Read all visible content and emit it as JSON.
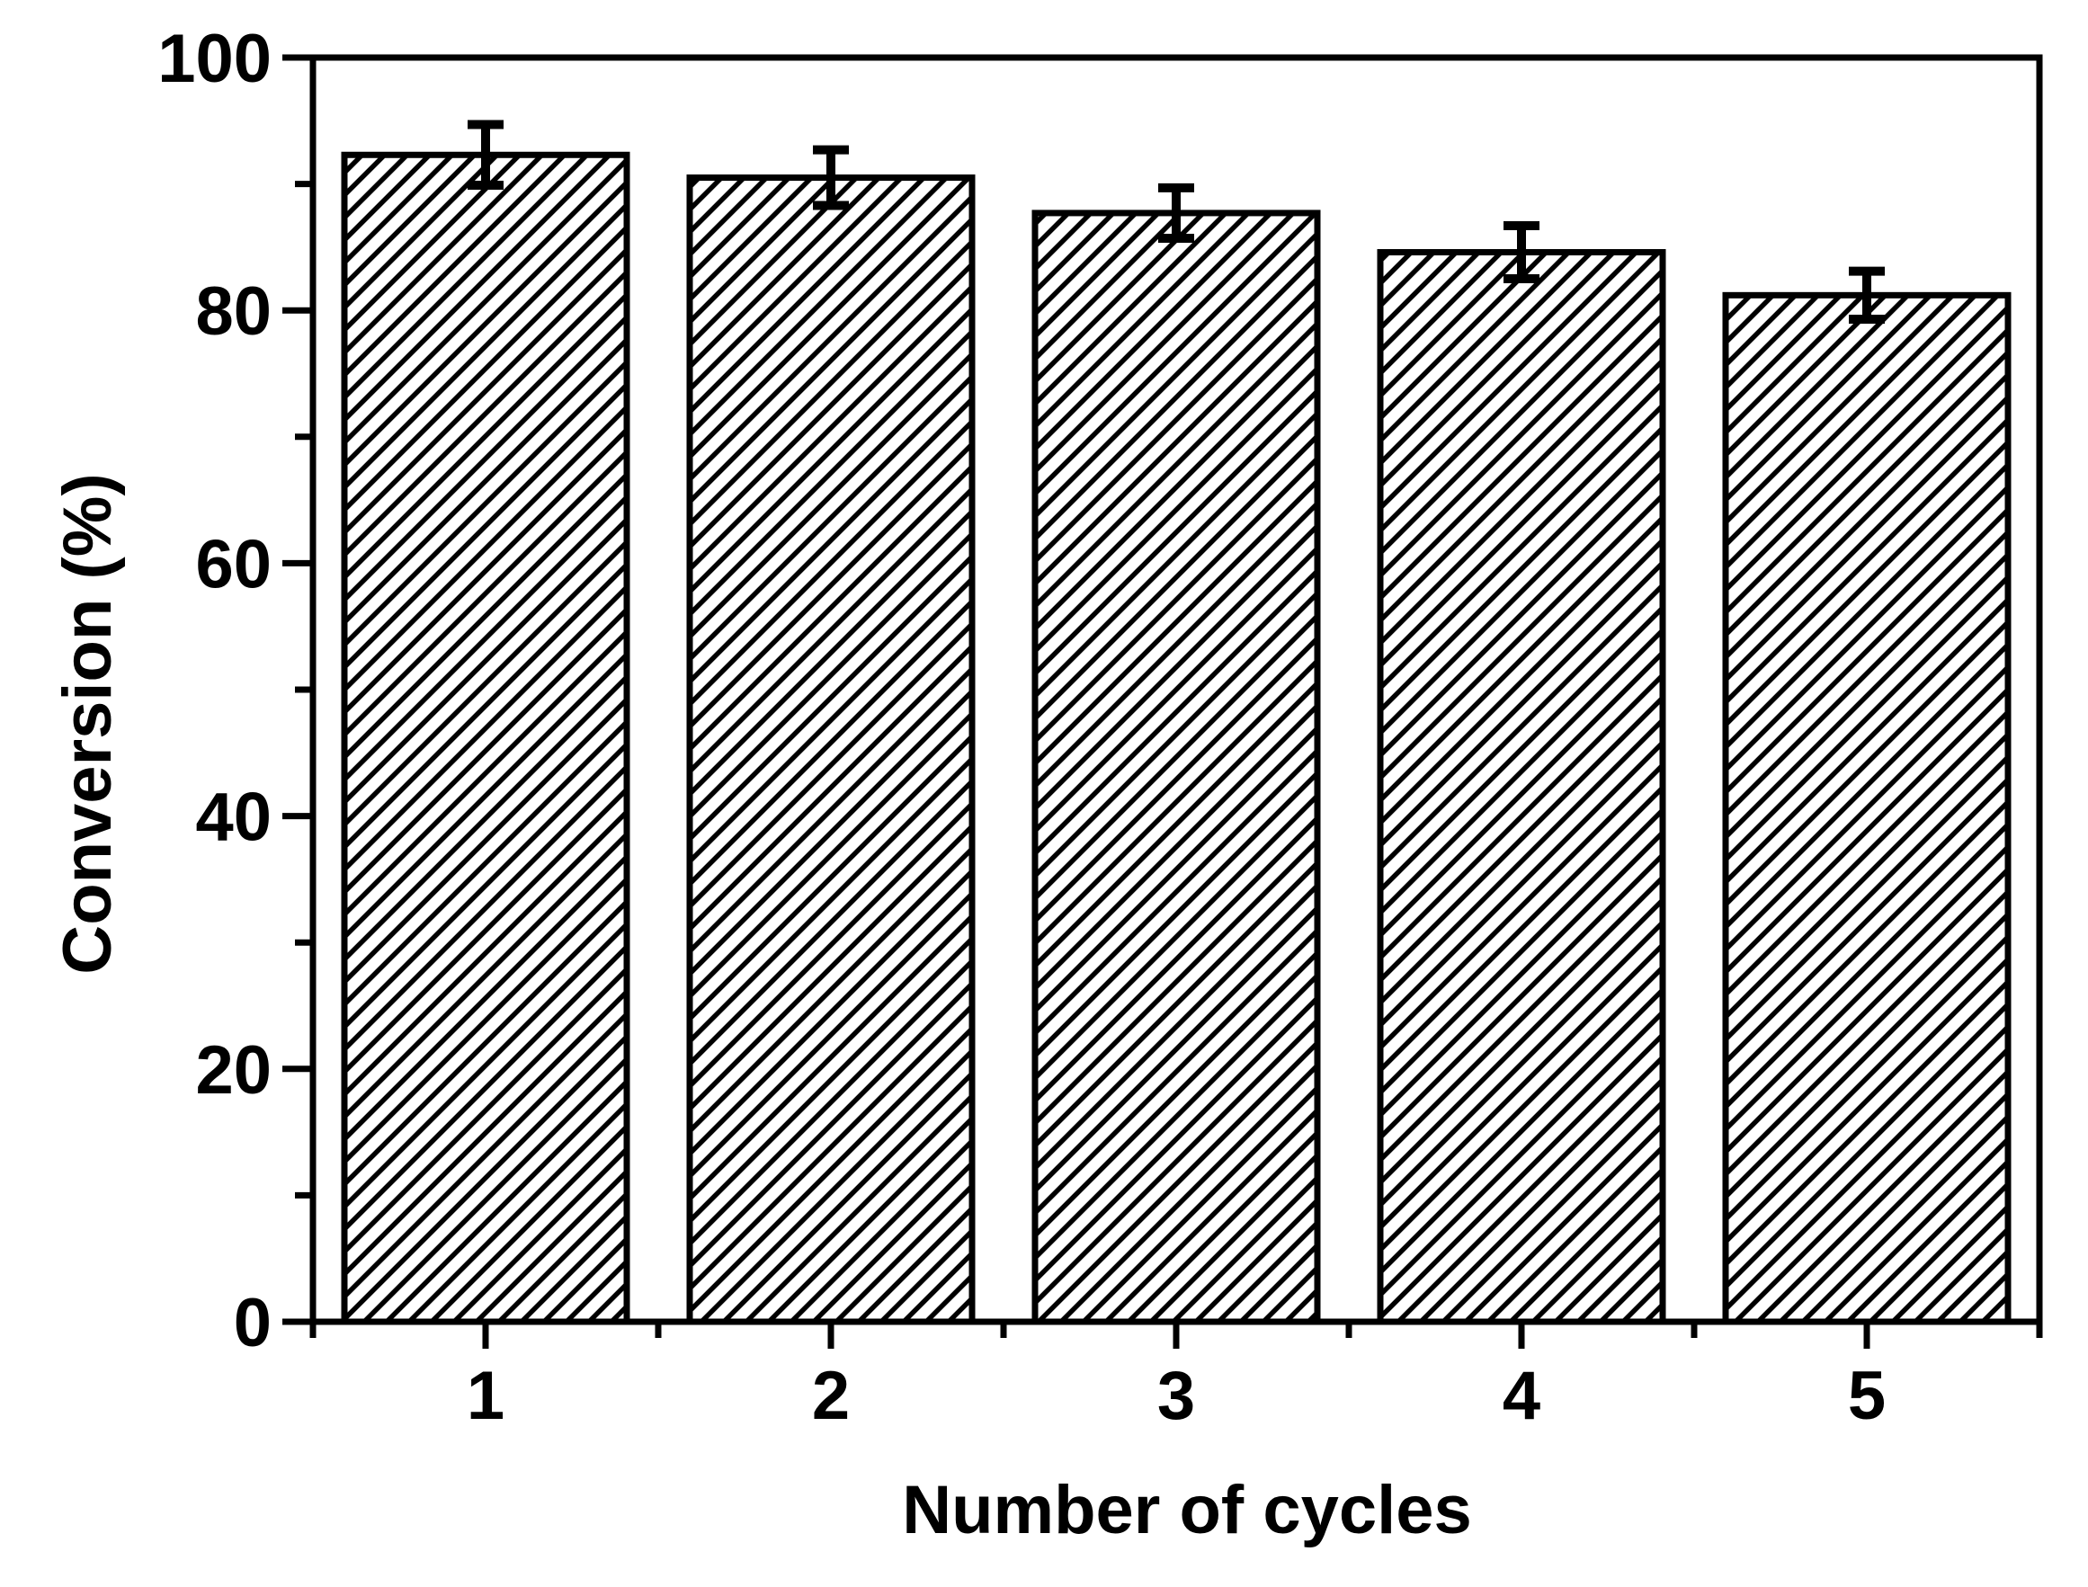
{
  "figure": {
    "background": "#ffffff",
    "ink_color": "#000000"
  },
  "chart_data": {
    "type": "bar",
    "title": "",
    "xlabel": "Number of cycles",
    "ylabel": "Conversion (%)",
    "categories": [
      "1",
      "2",
      "3",
      "4",
      "5"
    ],
    "values": [
      92.3,
      90.5,
      87.7,
      84.6,
      81.2
    ],
    "error_bars": [
      2.4,
      2.2,
      2.0,
      2.1,
      1.9
    ],
    "ylim": [
      0,
      100
    ],
    "xlim": [
      0.5,
      5.5
    ],
    "y_major_ticks": [
      0,
      20,
      40,
      60,
      80,
      100
    ],
    "y_minor_ticks": [
      10,
      30,
      50,
      70,
      90
    ],
    "x_minor_ticks": [
      0.5,
      1.5,
      2.5,
      3.5,
      4.5,
      5.5
    ],
    "grid": false,
    "legend": null,
    "bar_style": "diagonal-hatch",
    "bar_fill": "#ffffff",
    "bar_outline": "#000000"
  }
}
